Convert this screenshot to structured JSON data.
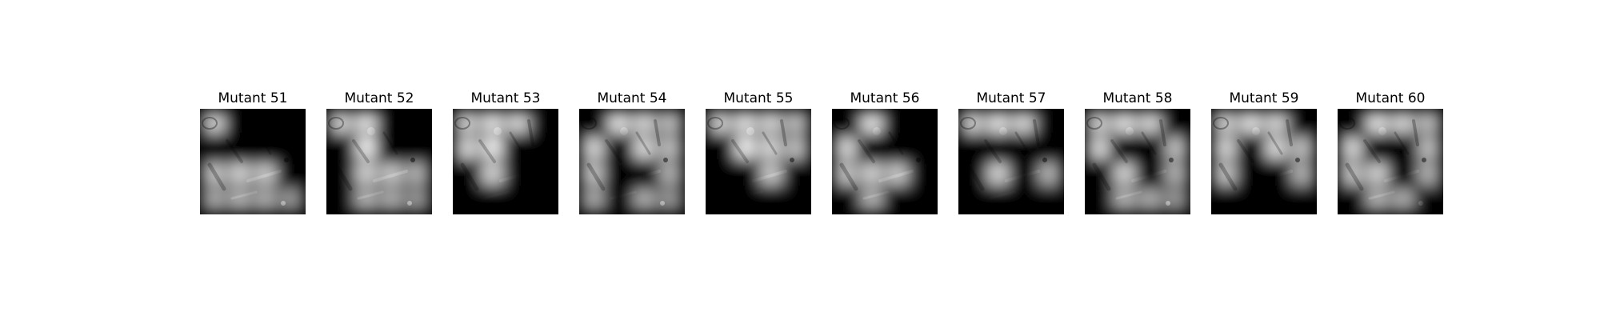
{
  "figure": {
    "background": "#ffffff",
    "panels": [
      {
        "title": "Mutant 51",
        "mask": [
          [
            1,
            0,
            0,
            0
          ],
          [
            0,
            0,
            0,
            0
          ],
          [
            1,
            1,
            1,
            0
          ],
          [
            1,
            1,
            1,
            1
          ]
        ]
      },
      {
        "title": "Mutant 52",
        "mask": [
          [
            1,
            1,
            0,
            0
          ],
          [
            0,
            1,
            0,
            0
          ],
          [
            0,
            1,
            1,
            1
          ],
          [
            0,
            1,
            1,
            1
          ]
        ]
      },
      {
        "title": "Mutant 53",
        "mask": [
          [
            1,
            1,
            1,
            0
          ],
          [
            1,
            1,
            0,
            0
          ],
          [
            0,
            1,
            0,
            0
          ],
          [
            0,
            0,
            0,
            0
          ]
        ]
      },
      {
        "title": "Mutant 54",
        "mask": [
          [
            0,
            1,
            1,
            1
          ],
          [
            1,
            0,
            1,
            1
          ],
          [
            1,
            0,
            0,
            1
          ],
          [
            1,
            0,
            1,
            1
          ]
        ]
      },
      {
        "title": "Mutant 55",
        "mask": [
          [
            1,
            1,
            1,
            1
          ],
          [
            0,
            1,
            1,
            1
          ],
          [
            0,
            0,
            1,
            0
          ],
          [
            0,
            0,
            0,
            0
          ]
        ]
      },
      {
        "title": "Mutant 56",
        "mask": [
          [
            0,
            1,
            0,
            0
          ],
          [
            1,
            0,
            0,
            0
          ],
          [
            1,
            1,
            1,
            0
          ],
          [
            0,
            1,
            0,
            0
          ]
        ]
      },
      {
        "title": "Mutant 57",
        "mask": [
          [
            1,
            1,
            1,
            0
          ],
          [
            0,
            0,
            0,
            0
          ],
          [
            0,
            1,
            0,
            1
          ],
          [
            0,
            0,
            0,
            0
          ]
        ]
      },
      {
        "title": "Mutant 58",
        "mask": [
          [
            1,
            1,
            1,
            0
          ],
          [
            1,
            0,
            0,
            1
          ],
          [
            0,
            1,
            0,
            1
          ],
          [
            0,
            1,
            1,
            1
          ]
        ]
      },
      {
        "title": "Mutant 59",
        "mask": [
          [
            1,
            1,
            1,
            0
          ],
          [
            1,
            0,
            1,
            1
          ],
          [
            1,
            0,
            0,
            1
          ],
          [
            0,
            0,
            0,
            0
          ]
        ]
      },
      {
        "title": "Mutant 60",
        "mask": [
          [
            0,
            1,
            1,
            1
          ],
          [
            1,
            0,
            0,
            1
          ],
          [
            1,
            1,
            0,
            1
          ],
          [
            0,
            1,
            1,
            0
          ]
        ]
      }
    ]
  }
}
